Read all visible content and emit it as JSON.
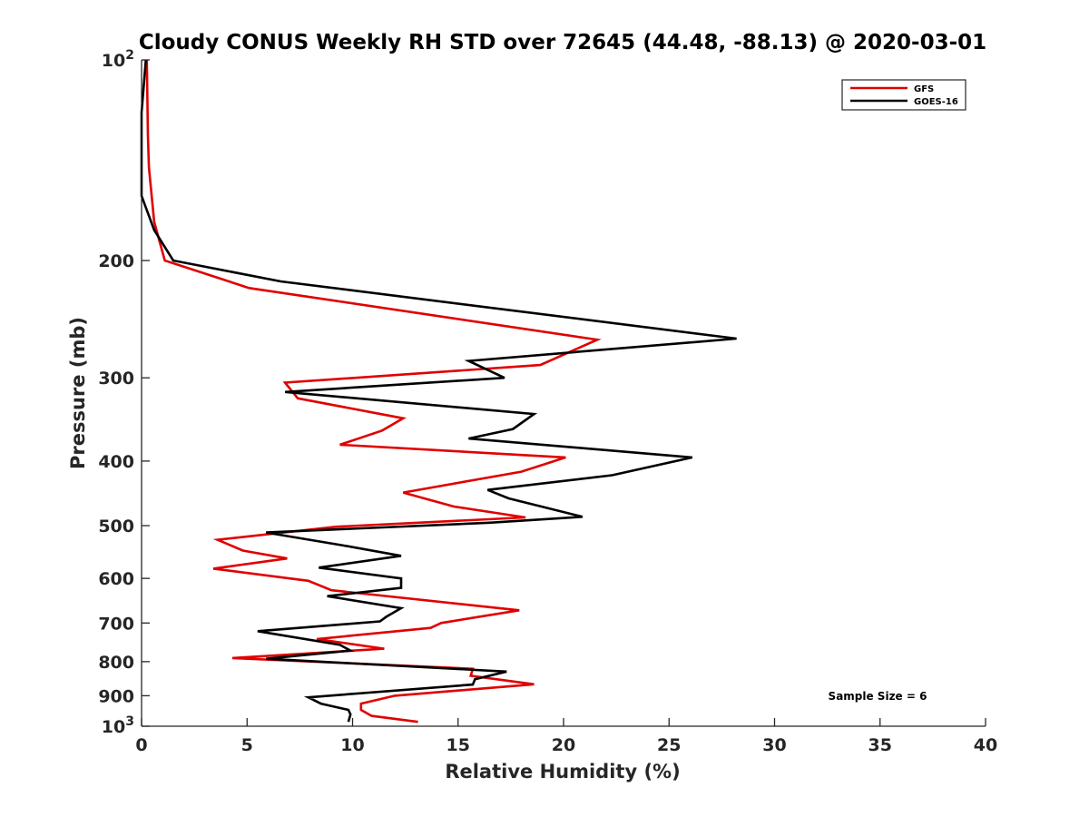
{
  "chart_data": {
    "type": "line",
    "title": "Cloudy CONUS Weekly RH STD over 72645 (44.48, -88.13) @ 2020-03-01",
    "xlabel": "Relative Humidity (%)",
    "ylabel": "Pressure (mb)",
    "xlim": [
      0,
      40
    ],
    "ylim": [
      100,
      1000
    ],
    "yscale": "log",
    "y_reversed": true,
    "x_ticks": [
      "0",
      "5",
      "10",
      "15",
      "20",
      "25",
      "30",
      "35",
      "40"
    ],
    "y_ticks": [
      {
        "value": 100,
        "label": "10",
        "sup": "2"
      },
      {
        "value": 200,
        "label": "200",
        "sup": ""
      },
      {
        "value": 300,
        "label": "300",
        "sup": ""
      },
      {
        "value": 400,
        "label": "400",
        "sup": ""
      },
      {
        "value": 500,
        "label": "500",
        "sup": ""
      },
      {
        "value": 600,
        "label": "600",
        "sup": ""
      },
      {
        "value": 700,
        "label": "700",
        "sup": ""
      },
      {
        "value": 800,
        "label": "800",
        "sup": ""
      },
      {
        "value": 900,
        "label": "900",
        "sup": ""
      },
      {
        "value": 1000,
        "label": "10",
        "sup": "3"
      }
    ],
    "legend_position": "top-right",
    "grid": false,
    "series": [
      {
        "name": "GFS",
        "color": "#e00000",
        "points": [
          [
            13.1,
            985
          ],
          [
            10.9,
            965
          ],
          [
            10.4,
            945
          ],
          [
            10.4,
            925
          ],
          [
            12.0,
            900
          ],
          [
            18.6,
            865
          ],
          [
            15.6,
            840
          ],
          [
            15.7,
            820
          ],
          [
            4.3,
            790
          ],
          [
            11.5,
            765
          ],
          [
            8.3,
            740
          ],
          [
            13.7,
            712
          ],
          [
            14.2,
            700
          ],
          [
            17.9,
            670
          ],
          [
            9.0,
            625
          ],
          [
            7.9,
            605
          ],
          [
            3.4,
            580
          ],
          [
            6.9,
            560
          ],
          [
            4.8,
            545
          ],
          [
            3.6,
            525
          ],
          [
            9.2,
            502
          ],
          [
            18.2,
            486
          ],
          [
            14.8,
            468
          ],
          [
            12.4,
            446
          ],
          [
            18.0,
            415
          ],
          [
            20.1,
            395
          ],
          [
            9.4,
            378
          ],
          [
            11.4,
            360
          ],
          [
            12.4,
            345
          ],
          [
            7.4,
            322
          ],
          [
            6.8,
            305
          ],
          [
            18.9,
            287
          ],
          [
            21.6,
            263
          ],
          [
            5.1,
            220
          ],
          [
            1.1,
            200
          ],
          [
            0.6,
            175
          ],
          [
            0.35,
            145
          ],
          [
            0.3,
            130
          ],
          [
            0.25,
            100
          ]
        ]
      },
      {
        "name": "GOES-16",
        "color": "#000000",
        "points": [
          [
            9.8,
            985
          ],
          [
            9.9,
            960
          ],
          [
            9.8,
            945
          ],
          [
            8.5,
            925
          ],
          [
            7.9,
            905
          ],
          [
            15.7,
            866
          ],
          [
            15.8,
            850
          ],
          [
            17.3,
            828
          ],
          [
            5.9,
            792
          ],
          [
            9.9,
            770
          ],
          [
            9.4,
            755
          ],
          [
            5.5,
            720
          ],
          [
            11.3,
            696
          ],
          [
            11.6,
            685
          ],
          [
            12.3,
            665
          ],
          [
            8.8,
            638
          ],
          [
            12.3,
            620
          ],
          [
            12.3,
            600
          ],
          [
            8.4,
            578
          ],
          [
            12.3,
            555
          ],
          [
            9.5,
            535
          ],
          [
            5.9,
            512
          ],
          [
            16.5,
            495
          ],
          [
            20.9,
            485
          ],
          [
            17.4,
            455
          ],
          [
            16.4,
            442
          ],
          [
            22.3,
            420
          ],
          [
            26.1,
            395
          ],
          [
            15.5,
            370
          ],
          [
            17.6,
            358
          ],
          [
            18.6,
            340
          ],
          [
            6.8,
            315
          ],
          [
            17.2,
            300
          ],
          [
            15.5,
            283
          ],
          [
            28.2,
            262
          ],
          [
            6.6,
            215
          ],
          [
            1.5,
            200
          ],
          [
            0.6,
            180
          ],
          [
            0.0,
            160
          ],
          [
            0.0,
            140
          ],
          [
            0.0,
            120
          ],
          [
            0.2,
            100
          ]
        ]
      }
    ],
    "annotation": "Sample Size = 6"
  }
}
